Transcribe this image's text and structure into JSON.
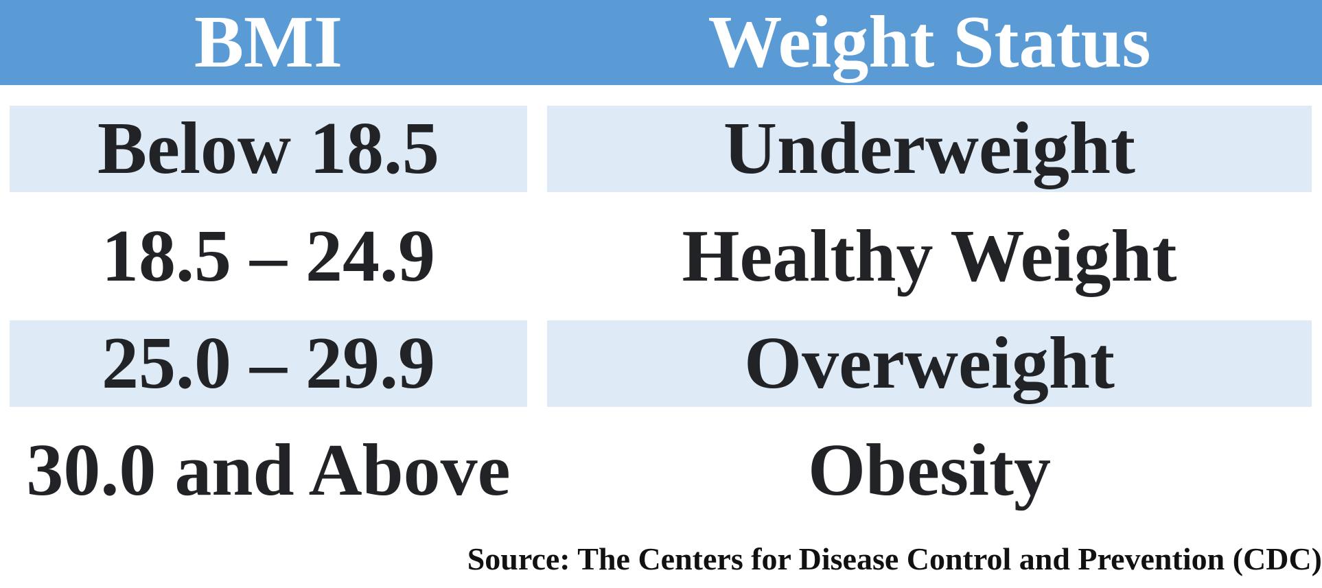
{
  "colors": {
    "header_bg": "#5b9bd5",
    "shaded_row_bg": "#deebf7",
    "text": "#222326"
  },
  "header": {
    "bmi_label": "BMI",
    "status_label": "Weight Status"
  },
  "rows": [
    {
      "bmi": "Below 18.5",
      "status": "Underweight",
      "shaded": true
    },
    {
      "bmi": "18.5 – 24.9",
      "status": "Healthy Weight",
      "shaded": false
    },
    {
      "bmi": "25.0 – 29.9",
      "status": "Overweight",
      "shaded": true
    },
    {
      "bmi": "30.0 and Above",
      "status": "Obesity",
      "shaded": false
    }
  ],
  "source": "Source: The Centers for Disease Control and Prevention (CDC)"
}
